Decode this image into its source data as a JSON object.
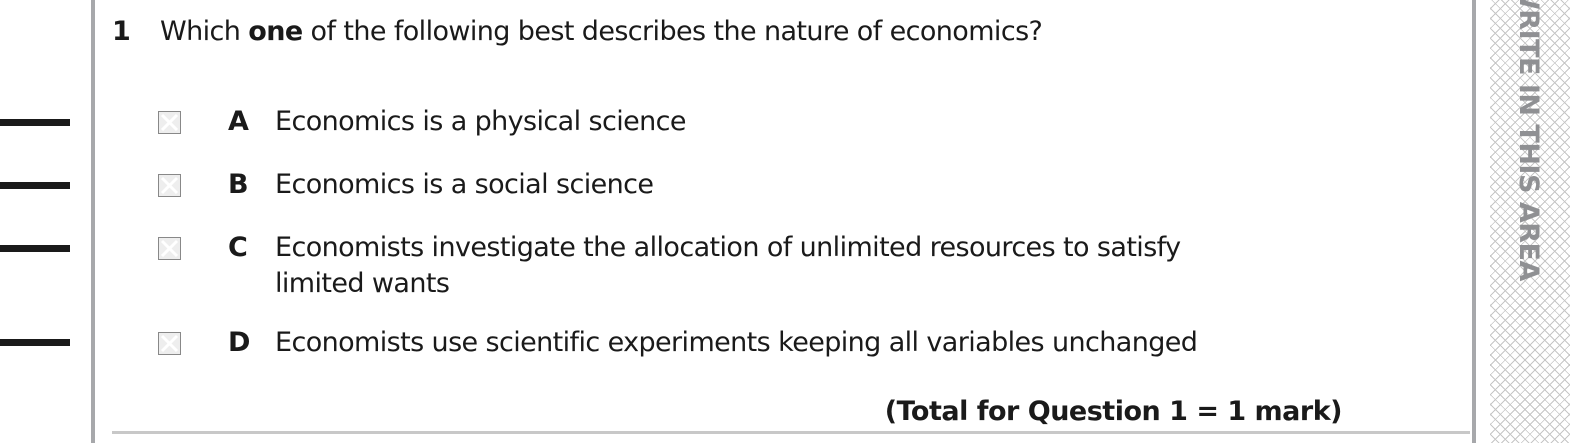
{
  "question": {
    "number": "1",
    "text_before": "Which ",
    "text_bold": "one",
    "text_after": " of the following best describes the nature of economics?"
  },
  "options": [
    {
      "letter": "A",
      "text": "Economics is a physical science"
    },
    {
      "letter": "B",
      "text": "Economics is a social science"
    },
    {
      "letter": "C",
      "text": "Economists investigate the allocation of unlimited resources to satisfy",
      "text2": "limited wants"
    },
    {
      "letter": "D",
      "text": "Economists use scientific experiments keeping all variables unchanged"
    }
  ],
  "total": "(Total for Question 1 = 1 mark)",
  "margin_text": "WRITE IN THIS AREA"
}
